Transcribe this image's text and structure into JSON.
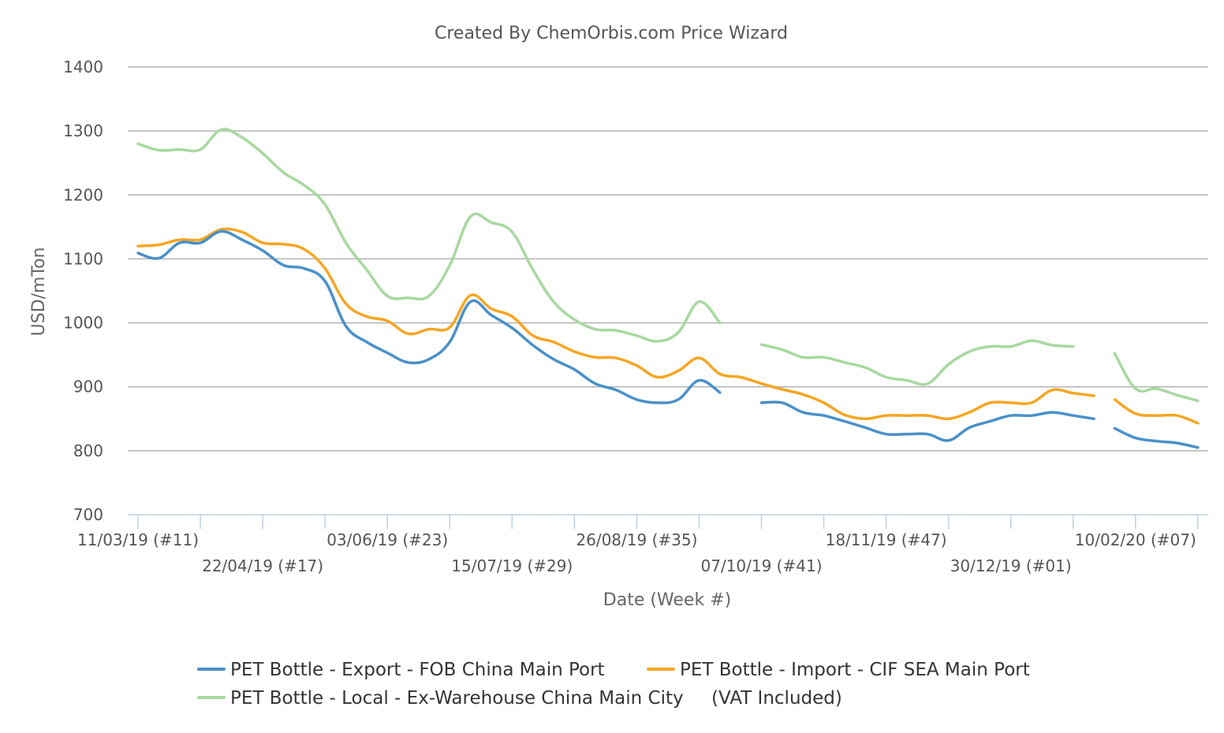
{
  "chart_data": {
    "type": "line",
    "title": "Created By ChemOrbis.com Price Wizard",
    "xlabel": "Date (Week #)",
    "ylabel": "USD/mTon",
    "ylim": [
      700,
      1400
    ],
    "yticks": [
      700,
      800,
      900,
      1000,
      1100,
      1200,
      1300,
      1400
    ],
    "grid": true,
    "legend_position": "bottom",
    "x_tick_labels": [
      {
        "label": "11/03/19 (#11)",
        "week": 0
      },
      {
        "label": "22/04/19 (#17)",
        "week": 6
      },
      {
        "label": "03/06/19 (#23)",
        "week": 12
      },
      {
        "label": "15/07/19 (#29)",
        "week": 18
      },
      {
        "label": "26/08/19 (#35)",
        "week": 24
      },
      {
        "label": "07/10/19 (#41)",
        "week": 30
      },
      {
        "label": "18/11/19 (#47)",
        "week": 36
      },
      {
        "label": "30/12/19 (#01)",
        "week": 42
      },
      {
        "label": "10/02/20 (#07)",
        "week": 48
      }
    ],
    "x_domain": [
      0,
      51.5
    ],
    "series": [
      {
        "name": "PET Bottle - Export - FOB China Main Port",
        "color": "#4a90c8",
        "points": [
          [
            0,
            1109
          ],
          [
            1,
            1101
          ],
          [
            2,
            1125
          ],
          [
            3,
            1125
          ],
          [
            4,
            1143
          ],
          [
            5,
            1130
          ],
          [
            6,
            1113
          ],
          [
            7,
            1090
          ],
          [
            8,
            1085
          ],
          [
            9,
            1065
          ],
          [
            10,
            995
          ],
          [
            11,
            970
          ],
          [
            12,
            953
          ],
          [
            13,
            938
          ],
          [
            14,
            943
          ],
          [
            15,
            970
          ],
          [
            16,
            1033
          ],
          [
            17,
            1012
          ],
          [
            18,
            992
          ],
          [
            19,
            965
          ],
          [
            20,
            943
          ],
          [
            21,
            927
          ],
          [
            22,
            905
          ],
          [
            23,
            895
          ],
          [
            24,
            880
          ],
          [
            25,
            875
          ],
          [
            26,
            880
          ],
          [
            27,
            910
          ],
          [
            28,
            891
          ],
          null,
          [
            30,
            875
          ],
          [
            31,
            875
          ],
          [
            32,
            860
          ],
          [
            33,
            855
          ],
          [
            34,
            846
          ],
          [
            35,
            836
          ],
          [
            36,
            826
          ],
          [
            37,
            826
          ],
          [
            38,
            826
          ],
          [
            39,
            816
          ],
          [
            40,
            836
          ],
          [
            41,
            846
          ],
          [
            42,
            855
          ],
          [
            43,
            855
          ],
          [
            44,
            860
          ],
          [
            45,
            855
          ],
          [
            46,
            850
          ],
          null,
          [
            47,
            835
          ],
          [
            48,
            820
          ],
          [
            49,
            815
          ],
          [
            50,
            812
          ],
          [
            51,
            805
          ]
        ]
      },
      {
        "name": "PET Bottle - Import - CIF SEA Main Port",
        "color": "#f5a623",
        "points": [
          [
            0,
            1120
          ],
          [
            1,
            1122
          ],
          [
            2,
            1130
          ],
          [
            3,
            1130
          ],
          [
            4,
            1146
          ],
          [
            5,
            1142
          ],
          [
            6,
            1125
          ],
          [
            7,
            1123
          ],
          [
            8,
            1115
          ],
          [
            9,
            1085
          ],
          [
            10,
            1030
          ],
          [
            11,
            1010
          ],
          [
            12,
            1003
          ],
          [
            13,
            983
          ],
          [
            14,
            990
          ],
          [
            15,
            993
          ],
          [
            16,
            1043
          ],
          [
            17,
            1022
          ],
          [
            18,
            1010
          ],
          [
            19,
            980
          ],
          [
            20,
            970
          ],
          [
            21,
            955
          ],
          [
            22,
            946
          ],
          [
            23,
            945
          ],
          [
            24,
            933
          ],
          [
            25,
            915
          ],
          [
            26,
            925
          ],
          [
            27,
            945
          ],
          [
            28,
            920
          ],
          [
            29,
            915
          ],
          [
            30,
            905
          ],
          [
            31,
            896
          ],
          [
            32,
            888
          ],
          [
            33,
            875
          ],
          [
            34,
            856
          ],
          [
            35,
            850
          ],
          [
            36,
            855
          ],
          [
            37,
            855
          ],
          [
            38,
            855
          ],
          [
            39,
            850
          ],
          [
            40,
            860
          ],
          [
            41,
            875
          ],
          [
            42,
            875
          ],
          [
            43,
            875
          ],
          [
            44,
            895
          ],
          [
            45,
            890
          ],
          [
            46,
            886
          ],
          null,
          [
            47,
            880
          ],
          [
            48,
            858
          ],
          [
            49,
            855
          ],
          [
            50,
            855
          ],
          [
            51,
            843
          ]
        ]
      },
      {
        "name": "PET Bottle - Local - Ex-Warehouse China Main City",
        "color": "#a8d8a0",
        "points": [
          [
            0,
            1280
          ],
          [
            1,
            1270
          ],
          [
            2,
            1271
          ],
          [
            3,
            1271
          ],
          [
            4,
            1302
          ],
          [
            5,
            1290
          ],
          [
            6,
            1265
          ],
          [
            7,
            1235
          ],
          [
            8,
            1215
          ],
          [
            9,
            1185
          ],
          [
            10,
            1125
          ],
          [
            11,
            1083
          ],
          [
            12,
            1042
          ],
          [
            13,
            1039
          ],
          [
            14,
            1042
          ],
          [
            15,
            1090
          ],
          [
            16,
            1166
          ],
          [
            17,
            1157
          ],
          [
            18,
            1142
          ],
          [
            19,
            1083
          ],
          [
            20,
            1033
          ],
          [
            21,
            1005
          ],
          [
            22,
            990
          ],
          [
            23,
            988
          ],
          [
            24,
            980
          ],
          [
            25,
            971
          ],
          [
            26,
            985
          ],
          [
            27,
            1033
          ],
          [
            28,
            1000
          ],
          null,
          [
            30,
            966
          ],
          [
            31,
            958
          ],
          [
            32,
            946
          ],
          [
            33,
            946
          ],
          [
            34,
            938
          ],
          [
            35,
            930
          ],
          [
            36,
            915
          ],
          [
            37,
            910
          ],
          [
            38,
            905
          ],
          [
            39,
            935
          ],
          [
            40,
            955
          ],
          [
            41,
            963
          ],
          [
            42,
            963
          ],
          [
            43,
            972
          ],
          [
            44,
            965
          ],
          [
            45,
            963
          ],
          null,
          [
            47,
            952
          ],
          [
            48,
            897
          ],
          [
            49,
            897
          ],
          [
            50,
            887
          ],
          [
            51,
            878
          ]
        ]
      }
    ]
  },
  "legend": {
    "items": [
      {
        "label": "PET Bottle - Export - FOB China Main Port",
        "color": "#4a90c8"
      },
      {
        "label": "PET Bottle - Import - CIF SEA Main Port",
        "color": "#f5a623"
      },
      {
        "label": "PET Bottle - Local - Ex-Warehouse China Main City",
        "suffix": "(VAT Included)",
        "color": "#a8d8a0"
      }
    ]
  }
}
